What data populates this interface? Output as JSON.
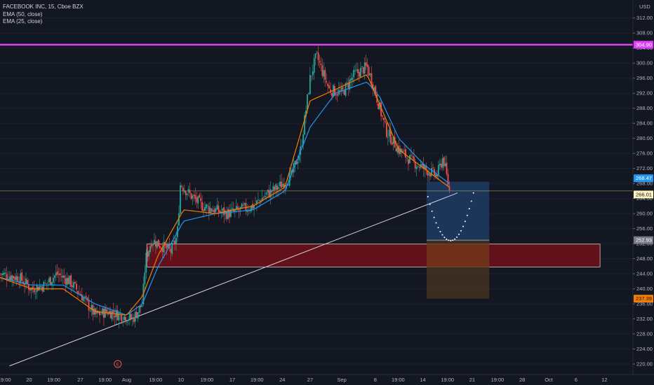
{
  "legend": {
    "title": "FACEBOOK INC, 15, Cboe BZX",
    "ema50": "EMA (50, close)",
    "ema25": "EMA (25, close)"
  },
  "currency": "USD",
  "colors": {
    "background": "#131722",
    "candle_up": "#26a69a",
    "candle_down": "#ef5350",
    "ema50": "#2196f3",
    "ema25": "#f57c00",
    "resistance": "#e040fb",
    "zone_fill": "#6b0f1a",
    "target_fill": "#1e3a5f",
    "stop_fill": "#4a3520",
    "trendline": "#d1d4dc"
  },
  "chart_data": {
    "type": "candlestick",
    "symbol": "FACEBOOK INC",
    "timeframe": "15",
    "exchange": "Cboe BZX",
    "y_axis": {
      "min": 219,
      "max": 314,
      "ticks": [
        220,
        224,
        228,
        232,
        236,
        240,
        244,
        248,
        252,
        256,
        260,
        264,
        268,
        272,
        276,
        280,
        284,
        288,
        292,
        296,
        300,
        304,
        308,
        312
      ],
      "tick_labels": [
        "220.00",
        "224.00",
        "228.00",
        "232.00",
        "236.00",
        "240.00",
        "244.00",
        "248.00",
        "252.00",
        "256.00",
        "260.00",
        "264.00",
        "268.00",
        "272.00",
        "276.00",
        "280.00",
        "284.00",
        "288.00",
        "292.00",
        "296.00",
        "300.00",
        "304.00",
        "308.00",
        "312.00"
      ]
    },
    "x_axis": {
      "labels": [
        "19:00",
        "20",
        "19:00",
        "27",
        "19:00",
        "Aug",
        "19:00",
        "10",
        "19:00",
        "17",
        "19:00",
        "24",
        "27",
        "Sep",
        "8",
        "19:00",
        "14",
        "19:00",
        "21",
        "19:00",
        "28",
        "Oct",
        "6",
        "12"
      ]
    },
    "price_series": [
      [
        0,
        244
      ],
      [
        0.03,
        243
      ],
      [
        0.05,
        240
      ],
      [
        0.07,
        241
      ],
      [
        0.09,
        244
      ],
      [
        0.11,
        242
      ],
      [
        0.13,
        238
      ],
      [
        0.15,
        233
      ],
      [
        0.17,
        234
      ],
      [
        0.19,
        233
      ],
      [
        0.21,
        232
      ],
      [
        0.225,
        236
      ],
      [
        0.23,
        248
      ],
      [
        0.24,
        253
      ],
      [
        0.25,
        252
      ],
      [
        0.27,
        250
      ],
      [
        0.28,
        254
      ],
      [
        0.285,
        268
      ],
      [
        0.3,
        265
      ],
      [
        0.32,
        262
      ],
      [
        0.34,
        261
      ],
      [
        0.36,
        260
      ],
      [
        0.38,
        261
      ],
      [
        0.4,
        262
      ],
      [
        0.42,
        265
      ],
      [
        0.44,
        267
      ],
      [
        0.46,
        270
      ],
      [
        0.475,
        277
      ],
      [
        0.49,
        296
      ],
      [
        0.5,
        302
      ],
      [
        0.52,
        293
      ],
      [
        0.54,
        292
      ],
      [
        0.56,
        297
      ],
      [
        0.58,
        299
      ],
      [
        0.59,
        294
      ],
      [
        0.61,
        282
      ],
      [
        0.63,
        277
      ],
      [
        0.65,
        274
      ],
      [
        0.67,
        272
      ],
      [
        0.69,
        270
      ],
      [
        0.7,
        275
      ],
      [
        0.71,
        266
      ]
    ],
    "ema50_series": [
      [
        0,
        243
      ],
      [
        0.05,
        241
      ],
      [
        0.1,
        241
      ],
      [
        0.15,
        236
      ],
      [
        0.2,
        233
      ],
      [
        0.225,
        236
      ],
      [
        0.25,
        246
      ],
      [
        0.29,
        258
      ],
      [
        0.34,
        260
      ],
      [
        0.4,
        261
      ],
      [
        0.45,
        266
      ],
      [
        0.49,
        283
      ],
      [
        0.53,
        292
      ],
      [
        0.58,
        295
      ],
      [
        0.6,
        291
      ],
      [
        0.63,
        280
      ],
      [
        0.67,
        273
      ],
      [
        0.71,
        268
      ]
    ],
    "ema25_series": [
      [
        0,
        243
      ],
      [
        0.05,
        240
      ],
      [
        0.1,
        240
      ],
      [
        0.15,
        234
      ],
      [
        0.2,
        233
      ],
      [
        0.225,
        238
      ],
      [
        0.25,
        249
      ],
      [
        0.29,
        261
      ],
      [
        0.34,
        260
      ],
      [
        0.4,
        262
      ],
      [
        0.45,
        267
      ],
      [
        0.49,
        290
      ],
      [
        0.53,
        293
      ],
      [
        0.58,
        297
      ],
      [
        0.6,
        289
      ],
      [
        0.63,
        277
      ],
      [
        0.67,
        272
      ],
      [
        0.71,
        267
      ]
    ],
    "horizontal_levels": [
      {
        "name": "resistance",
        "value": 304.9,
        "label": "304.90",
        "color": "#e040fb"
      },
      {
        "name": "last-price",
        "value": 266.01,
        "label": "266.01",
        "color": "#fff3bf"
      }
    ],
    "price_tags": [
      {
        "name": "ema-blue-tag",
        "value": 268.47,
        "label": "268.47",
        "color": "#2196f3"
      },
      {
        "name": "last-price-tag",
        "value": 266.01,
        "label": "266.01",
        "color": "#fff3bf"
      },
      {
        "name": "entry-tag",
        "value": 252.93,
        "label": "252.93",
        "color": "#787b86"
      },
      {
        "name": "stop-tag",
        "value": 237.39,
        "label": "237.39",
        "color": "#f57c00"
      }
    ],
    "demand_zone": {
      "low": 245.8,
      "high": 251.9
    },
    "trade_box": {
      "entry": 252.93,
      "target": 268.47,
      "stop": 237.39
    },
    "trendline": {
      "from_price": 219.5,
      "to_price": 265.5
    },
    "projection_curve": {
      "start": 264.5,
      "bottom": 252.8,
      "end": 265.5
    }
  }
}
